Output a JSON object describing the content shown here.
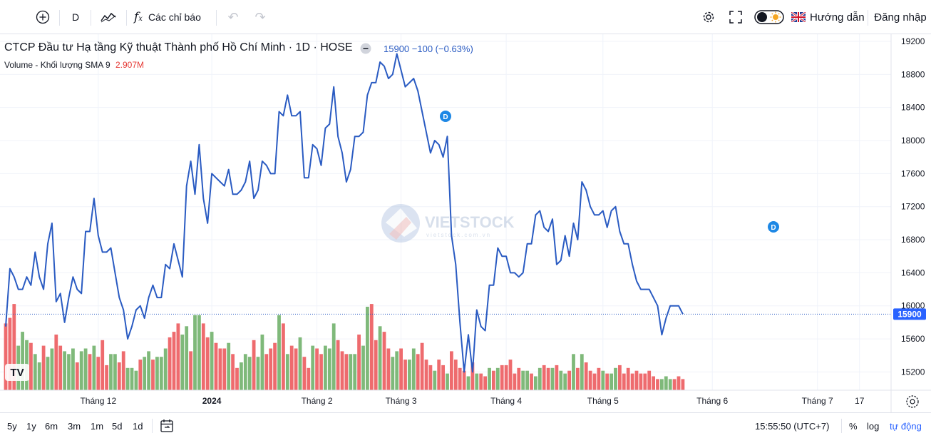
{
  "toolbar": {
    "interval": "D",
    "indicators_label": "Các chỉ báo",
    "guide_label": "Hướng dẫn",
    "login_label": "Đăng nhập"
  },
  "legend": {
    "title": "CTCP Đầu tư Hạ tầng Kỹ thuật Thành phố Hồ Chí Minh · 1D · HOSE",
    "price": "15900",
    "change": "−100 (−0.63%)",
    "volume_label": "Volume - Khối lượng SMA 9",
    "volume_value": "2.907M"
  },
  "watermark": {
    "text": "VIETSTOCK",
    "sub": "vietstock.com.vn"
  },
  "badges": [
    "D",
    "D"
  ],
  "bottom": {
    "ranges": [
      "5y",
      "1y",
      "6m",
      "3m",
      "1m",
      "5d",
      "1d"
    ],
    "time": "15:55:50 (UTC+7)",
    "percent": "%",
    "log": "log",
    "auto": "tự động"
  },
  "colors": {
    "line": "#2a5bc2",
    "up": "#7fb97a",
    "down": "#ee6b6e",
    "accent": "#2962ff"
  },
  "chart_data": {
    "type": "line",
    "last_price": 15900,
    "ylim": [
      15100,
      19200
    ],
    "yticks": [
      15200,
      15600,
      16000,
      16400,
      16800,
      17200,
      17600,
      18000,
      18400,
      18800,
      19200
    ],
    "xticks": [
      "Tháng 12",
      "2024",
      "Tháng 2",
      "Tháng 3",
      "Tháng 4",
      "Tháng 5",
      "Tháng 6",
      "Tháng 7",
      "17"
    ],
    "price_series": [
      15750,
      16450,
      16350,
      16200,
      16200,
      16350,
      16250,
      16650,
      16350,
      16200,
      16750,
      17000,
      16050,
      16150,
      15800,
      16100,
      16350,
      16200,
      16150,
      16900,
      16900,
      17300,
      16850,
      16650,
      16650,
      16700,
      16400,
      16100,
      15950,
      15600,
      15750,
      15950,
      16000,
      15850,
      16100,
      16250,
      16100,
      16100,
      16500,
      16450,
      16750,
      16550,
      16350,
      17450,
      17750,
      17350,
      17950,
      17300,
      17000,
      17600,
      17550,
      17500,
      17450,
      17650,
      17350,
      17350,
      17400,
      17500,
      17750,
      17300,
      17400,
      17750,
      17700,
      17600,
      17600,
      18350,
      18300,
      18550,
      18300,
      18300,
      18350,
      17550,
      17550,
      17950,
      17900,
      17700,
      18150,
      18200,
      18650,
      18050,
      17850,
      17500,
      17650,
      18050,
      18050,
      18100,
      18550,
      18700,
      18700,
      18950,
      18900,
      18750,
      18800,
      19050,
      18850,
      18650,
      18700,
      18750,
      18600,
      18350,
      18100,
      17850,
      18000,
      17950,
      17800,
      18050,
      16850,
      16500,
      15800,
      15200,
      15650,
      15200,
      15950,
      15750,
      15700,
      16250,
      16250,
      16700,
      16600,
      16600,
      16400,
      16400,
      16350,
      16400,
      16750,
      16750,
      17100,
      17150,
      16950,
      16900,
      17050,
      16500,
      16550,
      16850,
      16600,
      17000,
      16800,
      17500,
      17400,
      17200,
      17100,
      17100,
      17150,
      16950,
      17150,
      17200,
      16900,
      16750,
      16750,
      16500,
      16300,
      16200,
      16200,
      16200,
      16100,
      16000,
      15650,
      15850,
      16000,
      16000,
      16000,
      15900
    ],
    "volume_series": [
      24,
      26,
      31,
      16,
      21,
      18,
      17,
      13,
      10,
      16,
      12,
      15,
      20,
      16,
      14,
      13,
      15,
      10,
      14,
      15,
      13,
      16,
      12,
      18,
      9,
      13,
      13,
      10,
      14,
      8,
      8,
      7,
      11,
      12,
      14,
      11,
      12,
      12,
      15,
      19,
      21,
      24,
      20,
      23,
      14,
      27,
      27,
      24,
      19,
      21,
      17,
      15,
      15,
      17,
      13,
      8,
      10,
      13,
      12,
      18,
      12,
      20,
      13,
      15,
      17,
      27,
      24,
      13,
      16,
      15,
      19,
      12,
      8,
      16,
      15,
      13,
      16,
      15,
      24,
      18,
      14,
      13,
      13,
      13,
      20,
      16,
      30,
      31,
      18,
      23,
      21,
      15,
      12,
      14,
      15,
      11,
      11,
      15,
      13,
      17,
      11,
      9,
      7,
      11,
      9,
      6,
      14,
      11,
      8,
      7,
      5,
      10,
      6,
      6,
      5,
      8,
      7,
      8,
      9,
      9,
      11,
      6,
      8,
      7,
      7,
      6,
      5,
      8,
      9,
      8,
      8,
      9,
      7,
      6,
      7,
      13,
      8,
      13,
      10,
      7,
      6,
      8,
      7,
      6,
      6,
      8,
      9,
      6,
      8,
      6,
      7,
      6,
      6,
      7,
      5,
      4,
      4,
      5,
      4,
      4,
      5,
      4
    ],
    "volume_up": [
      0,
      0,
      0,
      1,
      1,
      1,
      0,
      1,
      1,
      0,
      1,
      1,
      0,
      0,
      1,
      1,
      1,
      0,
      1,
      1,
      0,
      1,
      0,
      0,
      0,
      1,
      1,
      0,
      0,
      1,
      1,
      1,
      0,
      1,
      1,
      0,
      1,
      1,
      1,
      0,
      0,
      0,
      1,
      1,
      0,
      1,
      1,
      0,
      0,
      1,
      0,
      0,
      0,
      1,
      0,
      0,
      1,
      1,
      1,
      0,
      1,
      1,
      0,
      0,
      0,
      1,
      0,
      1,
      0,
      0,
      1,
      0,
      0,
      1,
      0,
      0,
      1,
      1,
      1,
      0,
      0,
      0,
      1,
      1,
      0,
      1,
      1,
      0,
      0,
      1,
      0,
      0,
      1,
      1,
      0,
      0,
      1,
      1,
      0,
      0,
      0,
      0,
      1,
      0,
      0,
      1,
      0,
      0,
      0,
      0,
      1,
      0,
      1,
      0,
      0,
      1,
      0,
      1,
      0,
      0,
      0,
      0,
      0,
      1,
      1,
      0,
      1,
      1,
      0,
      0,
      1,
      0,
      1,
      1,
      0,
      1,
      0,
      1,
      0,
      0,
      0,
      0,
      1,
      0,
      1,
      1,
      0,
      0,
      0,
      0,
      0,
      0,
      0,
      0,
      0,
      0,
      1,
      1,
      1,
      0,
      0,
      0
    ]
  }
}
